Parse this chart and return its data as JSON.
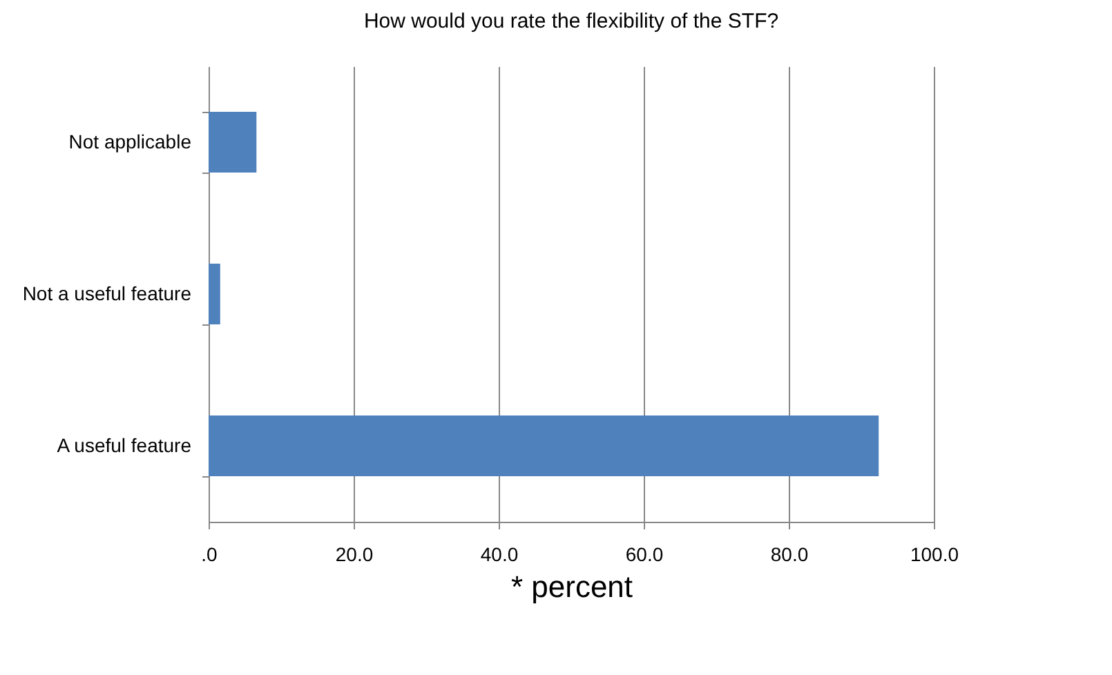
{
  "chart_data": {
    "type": "bar",
    "orientation": "horizontal",
    "title": "How would you rate the flexibility of the STF?",
    "xlabel": "* percent",
    "categories": [
      "Not applicable",
      "Not a useful feature",
      "A useful feature"
    ],
    "values": [
      6.6,
      1.6,
      92.4
    ],
    "color": "#4f81bd",
    "xlim": [
      0,
      100
    ],
    "xticks": [
      {
        "value": 0,
        "label": ".0"
      },
      {
        "value": 20,
        "label": "20.0"
      },
      {
        "value": 40,
        "label": "40.0"
      },
      {
        "value": 60,
        "label": "60.0"
      },
      {
        "value": 80,
        "label": "80.0"
      },
      {
        "value": 100,
        "label": "100.0"
      }
    ],
    "grid": "x"
  }
}
